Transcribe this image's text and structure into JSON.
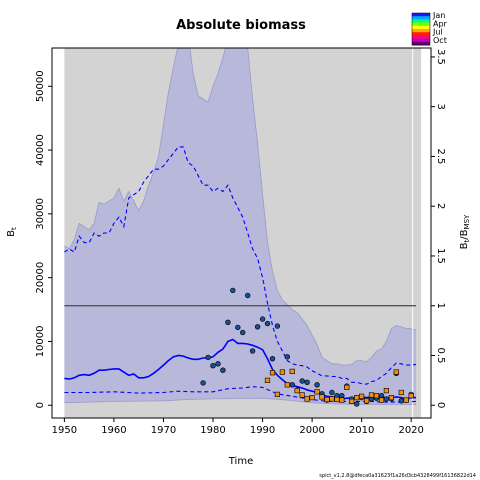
{
  "chart_data": {
    "type": "line",
    "title": "Absolute biomass",
    "xlabel": "Time",
    "ylabel": "B",
    "ylabel_sub": "t",
    "ylabel2": "B",
    "ylabel2_sub": "t",
    "ylabel2_mid": "/B",
    "ylabel2_sub2": "MSY",
    "xlim": [
      1947.5,
      2024
    ],
    "ylim": [
      -2000,
      56000
    ],
    "xticks": [
      1950,
      1960,
      1970,
      1980,
      1990,
      2000,
      2010,
      2020
    ],
    "yticks": [
      0,
      10000,
      20000,
      30000,
      40000,
      50000
    ],
    "y2ticks": [
      0,
      0.5,
      1,
      1.5,
      2,
      2.5,
      3,
      3.5
    ],
    "y2_scale_bmsy": 15600,
    "bmsy_line": 15600,
    "forecast_start": 2020.3,
    "legend": {
      "placement": "top-right",
      "labels": [
        "Jan",
        "Apr",
        "Jul",
        "Oct"
      ],
      "colors": [
        "#1a1aff",
        "#00aaff",
        "#00ff80",
        "#80ff00",
        "#ffff00",
        "#ffaa00",
        "#ff2000",
        "#ff0080",
        "#c000c0",
        "#6a006a"
      ]
    },
    "series": [
      {
        "name": "upper_ci",
        "style": "band",
        "x": [
          1950,
          1951,
          1952,
          1953,
          1954,
          1955,
          1956,
          1957,
          1958,
          1959,
          1960,
          1961,
          1962,
          1963,
          1964,
          1965,
          1966,
          1967,
          1968,
          1969,
          1970,
          1971,
          1972,
          1973,
          1974,
          1975,
          1976,
          1977,
          1978,
          1979,
          1980,
          1981,
          1982,
          1983,
          1984,
          1985,
          1986,
          1987,
          1988,
          1989,
          1990,
          1991,
          1992,
          1993,
          1994,
          1995,
          1996,
          1997,
          1998,
          1999,
          2000,
          2001,
          2002,
          2003,
          2004,
          2005,
          2006,
          2007,
          2008,
          2009,
          2010,
          2011,
          2012,
          2013,
          2014,
          2015,
          2016,
          2017,
          2018,
          2019,
          2020,
          2021
        ],
        "values": [
          25000,
          24500,
          26000,
          28500,
          28000,
          27500,
          28500,
          31800,
          31500,
          32000,
          32500,
          34000,
          32000,
          33500,
          32000,
          30500,
          32000,
          34500,
          36500,
          39000,
          44000,
          49000,
          53000,
          56500,
          57500,
          58000,
          52000,
          48500,
          48000,
          47500,
          50000,
          52000,
          54500,
          57500,
          58000,
          58000,
          57000,
          56000,
          48000,
          41000,
          33000,
          25500,
          21000,
          18000,
          16500,
          15800,
          15000,
          14500,
          13500,
          12500,
          11000,
          9500,
          7500,
          7000,
          6500,
          6500,
          6300,
          6300,
          6400,
          7000,
          7000,
          6800,
          7500,
          8500,
          8800,
          10000,
          12000,
          12500,
          12300,
          12000,
          12000,
          11800
        ]
      },
      {
        "name": "lower_ci",
        "style": "band",
        "x": [
          1950,
          1955,
          1960,
          1965,
          1970,
          1975,
          1980,
          1985,
          1990,
          1995,
          2000,
          2005,
          2010,
          2015,
          2020,
          2021
        ],
        "values": [
          400,
          500,
          600,
          650,
          700,
          900,
          1000,
          1050,
          1100,
          800,
          400,
          200,
          150,
          150,
          100,
          100
        ]
      },
      {
        "name": "median",
        "style": "solid",
        "x": [
          1950,
          1951,
          1952,
          1953,
          1954,
          1955,
          1956,
          1957,
          1958,
          1959,
          1960,
          1961,
          1962,
          1963,
          1964,
          1965,
          1966,
          1967,
          1968,
          1969,
          1970,
          1971,
          1972,
          1973,
          1974,
          1975,
          1976,
          1977,
          1978,
          1979,
          1980,
          1981,
          1982,
          1983,
          1984,
          1985,
          1986,
          1987,
          1988,
          1989,
          1990,
          1991,
          1992,
          1993,
          1994,
          1995,
          1996,
          1997,
          1998,
          1999,
          2000,
          2001,
          2002,
          2003,
          2004,
          2005,
          2006,
          2007,
          2008,
          2009,
          2010,
          2011,
          2012,
          2013,
          2014,
          2015,
          2016,
          2017,
          2018,
          2019,
          2020,
          2021
        ],
        "values": [
          4200,
          4100,
          4300,
          4700,
          4800,
          4700,
          5000,
          5500,
          5500,
          5600,
          5700,
          5700,
          5200,
          4700,
          4900,
          4300,
          4300,
          4500,
          5000,
          5600,
          6300,
          7000,
          7600,
          7800,
          7700,
          7400,
          7200,
          7200,
          7400,
          7400,
          7600,
          8300,
          8800,
          10000,
          10300,
          9700,
          9700,
          9600,
          9400,
          9100,
          8700,
          7300,
          5600,
          4700,
          4000,
          3400,
          3100,
          2900,
          2700,
          2400,
          2200,
          2000,
          1600,
          1400,
          1300,
          1100,
          1000,
          1100,
          1100,
          1200,
          1300,
          1200,
          1300,
          1300,
          1200,
          1200,
          1200,
          1300,
          1200,
          1000,
          1200,
          1200
        ]
      },
      {
        "name": "dashed_upper",
        "style": "dashed",
        "x": [
          1950,
          1951,
          1952,
          1953,
          1954,
          1955,
          1956,
          1957,
          1958,
          1959,
          1960,
          1961,
          1962,
          1963,
          1964,
          1965,
          1966,
          1967,
          1968,
          1969,
          1970,
          1971,
          1972,
          1973,
          1974,
          1975,
          1976,
          1977,
          1978,
          1979,
          1980,
          1981,
          1982,
          1983,
          1984,
          1985,
          1986,
          1987,
          1988,
          1989,
          1990,
          1991,
          1992,
          1993,
          1994,
          1995,
          1996,
          1997,
          1998,
          1999,
          2000,
          2001,
          2002,
          2003,
          2004,
          2005,
          2006,
          2007,
          2008,
          2009,
          2010,
          2011,
          2012,
          2013,
          2014,
          2015,
          2016,
          2017,
          2018,
          2019,
          2020,
          2021
        ],
        "values": [
          24000,
          24500,
          24000,
          26500,
          25500,
          25500,
          27000,
          26500,
          27000,
          27000,
          28500,
          29500,
          28000,
          32500,
          33000,
          33500,
          35000,
          36000,
          37000,
          37000,
          37500,
          38500,
          39500,
          40500,
          40500,
          38000,
          37500,
          36000,
          34500,
          34500,
          33500,
          34000,
          33500,
          34500,
          32500,
          31000,
          29500,
          27000,
          24500,
          23000,
          20000,
          16000,
          12500,
          10000,
          8500,
          7000,
          6500,
          6300,
          6200,
          6000,
          5400,
          5000,
          4600,
          4600,
          4500,
          4500,
          4200,
          4200,
          3600,
          3600,
          3400,
          3300,
          3700,
          3900,
          4500,
          5000,
          5900,
          6600,
          6500,
          6300,
          6300,
          6400
        ]
      },
      {
        "name": "dashed_lower",
        "style": "dashed",
        "x": [
          1950,
          1955,
          1960,
          1965,
          1970,
          1973,
          1976,
          1980,
          1983,
          1986,
          1988,
          1990,
          1993,
          1996,
          2000,
          2003,
          2006,
          2009,
          2012,
          2015,
          2018,
          2021
        ],
        "values": [
          2000,
          2000,
          2100,
          1900,
          2000,
          2200,
          2100,
          2100,
          2600,
          2700,
          2900,
          2800,
          1800,
          1400,
          900,
          600,
          600,
          600,
          600,
          500,
          500,
          600
        ]
      },
      {
        "name": "survey_index_1",
        "style": "points",
        "color": "#1a4e96",
        "x": [
          1978,
          1979,
          1980,
          1981,
          1982,
          1983,
          1984,
          1985,
          1986,
          1987,
          1988,
          1989,
          1990,
          1991,
          1992,
          1993,
          1995,
          1996,
          1997,
          1998,
          1999,
          2001,
          2002,
          2003,
          2004,
          2005,
          2006,
          2007,
          2008,
          2009,
          2010,
          2011,
          2012,
          2013,
          2014,
          2015,
          2016,
          2017,
          2018,
          2019,
          2020
        ],
        "values": [
          3500,
          7500,
          6200,
          6500,
          5500,
          13000,
          18000,
          12200,
          11400,
          17200,
          8500,
          12300,
          13500,
          12800,
          7300,
          12400,
          7600,
          3200,
          2400,
          3800,
          3600,
          3200,
          1800,
          800,
          2000,
          1500,
          1500,
          3000,
          1000,
          200,
          1200,
          600,
          1000,
          1100,
          1500,
          1000,
          1000,
          5000,
          700,
          800,
          1700
        ]
      },
      {
        "name": "survey_index_2",
        "style": "points",
        "color": "#f0900c",
        "x": [
          1991,
          1992,
          1993,
          1994,
          1995,
          1996,
          1997,
          1998,
          1999,
          2000,
          2001,
          2002,
          2003,
          2004,
          2005,
          2006,
          2007,
          2008,
          2009,
          2010,
          2011,
          2012,
          2013,
          2014,
          2015,
          2016,
          2017,
          2018,
          2019,
          2020
        ],
        "values": [
          3900,
          5100,
          1700,
          5200,
          3200,
          5300,
          2300,
          1600,
          1000,
          1200,
          2100,
          1300,
          900,
          1000,
          900,
          800,
          2800,
          600,
          1200,
          1400,
          700,
          1600,
          1500,
          800,
          2300,
          1200,
          5200,
          2000,
          800,
          1500
        ]
      }
    ]
  },
  "footnote": "spict_v1.2.8@dfeca0a31623f1a26d3cb4328499f16136822d14"
}
